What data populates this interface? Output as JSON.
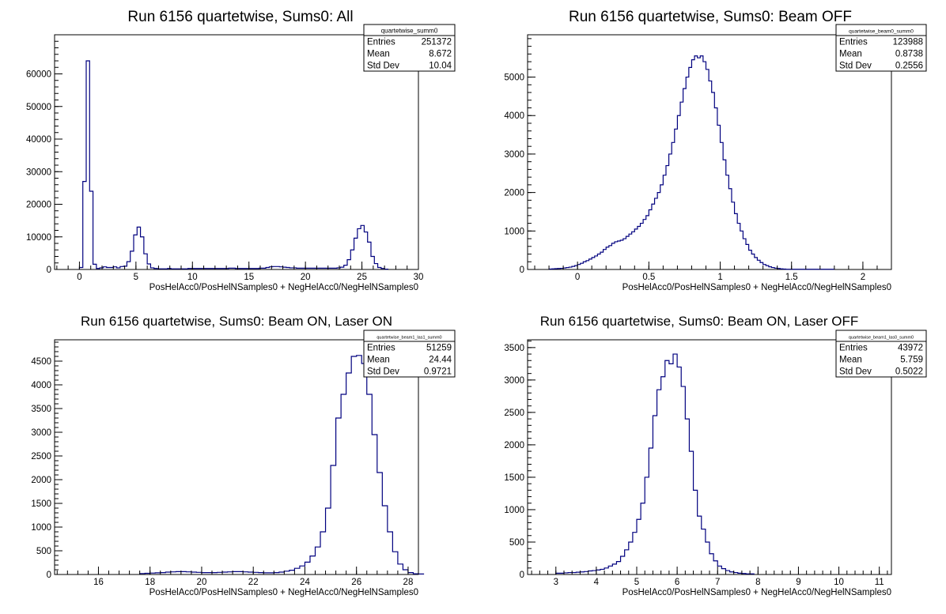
{
  "chart_data": [
    {
      "type": "histogram",
      "title": "Run 6156 quartetwise, Sums0: All",
      "xlabel": "PosHelAcc0/PosHelNSamples0 + NegHelAcc0/NegHelNSamples0",
      "ylabel": "",
      "xlim": [
        -2.2,
        30
      ],
      "ylim": [
        0,
        72000
      ],
      "xticks": [
        0,
        5,
        10,
        15,
        20,
        25,
        30
      ],
      "yticks": [
        0,
        10000,
        20000,
        30000,
        40000,
        50000,
        60000
      ],
      "stats": {
        "name": "quartetwise_summ0",
        "entries_label": "Entries",
        "entries": "251372",
        "mean_label": "Mean",
        "mean": "8.672",
        "std_label": "Std Dev",
        "std": "10.04"
      },
      "x_start": 0,
      "bin_width": 0.3,
      "values": [
        600,
        27000,
        64000,
        24000,
        1600,
        300,
        500,
        800,
        600,
        600,
        800,
        500,
        900,
        1000,
        2400,
        5600,
        10600,
        13000,
        10000,
        4800,
        1700,
        500,
        300,
        200,
        200,
        200,
        300,
        200,
        200,
        200,
        200,
        200,
        300,
        300,
        300,
        300,
        300,
        300,
        300,
        300,
        300,
        300,
        300,
        300,
        400,
        400,
        300,
        300,
        300,
        300,
        300,
        300,
        300,
        400,
        400,
        600,
        800,
        900,
        900,
        800,
        700,
        600,
        500,
        500,
        400,
        400,
        400,
        400,
        400,
        400,
        400,
        400,
        400,
        400,
        400,
        400,
        500,
        700,
        1300,
        3000,
        6000,
        9600,
        12500,
        13500,
        11500,
        8400,
        4000,
        1800,
        600,
        300,
        100
      ]
    },
    {
      "type": "histogram",
      "title": "Run 6156 quartetwise, Sums0: Beam OFF",
      "xlabel": "PosHelAcc0/PosHelNSamples0 + NegHelAcc0/NegHelNSamples0",
      "ylabel": "",
      "xlim": [
        -0.35,
        2.2
      ],
      "ylim": [
        0,
        6100
      ],
      "xticks": [
        0,
        0.5,
        1,
        1.5,
        2
      ],
      "xtick_labels": [
        "0",
        "0.5",
        "1",
        "1.5",
        "2"
      ],
      "yticks": [
        0,
        1000,
        2000,
        3000,
        4000,
        5000
      ],
      "stats": {
        "name": "quartetwise_beam0_summ0",
        "entries_label": "Entries",
        "entries": "123988",
        "mean_label": "Mean",
        "mean": "0.8738",
        "std_label": "Std Dev",
        "std": "0.2556"
      },
      "x_start": -0.2,
      "bin_width": 0.02,
      "values": [
        10,
        15,
        20,
        25,
        30,
        40,
        50,
        60,
        80,
        100,
        130,
        160,
        200,
        230,
        270,
        310,
        350,
        400,
        450,
        520,
        580,
        620,
        680,
        720,
        740,
        760,
        800,
        860,
        920,
        980,
        1050,
        1120,
        1200,
        1300,
        1400,
        1550,
        1700,
        1850,
        2000,
        2200,
        2450,
        2700,
        3000,
        3300,
        3650,
        4000,
        4350,
        4700,
        5000,
        5250,
        5450,
        5550,
        5500,
        5550,
        5400,
        5200,
        4900,
        4600,
        4200,
        3750,
        3300,
        2850,
        2450,
        2100,
        1750,
        1450,
        1200,
        1000,
        800,
        650,
        500,
        400,
        310,
        240,
        180,
        130,
        100,
        70,
        50,
        35,
        25,
        15,
        10,
        5,
        5,
        5,
        5,
        5,
        5,
        5,
        5,
        5,
        5,
        5,
        5,
        5,
        5,
        5,
        5,
        5
      ]
    },
    {
      "type": "histogram",
      "title": "Run 6156 quartetwise, Sums0: Beam ON, Laser ON",
      "xlabel": "PosHelAcc0/PosHelNSamples0 + NegHelAcc0/NegHelNSamples0",
      "ylabel": "",
      "xlim": [
        14.3,
        28.4
      ],
      "ylim": [
        0,
        4950
      ],
      "xticks": [
        16,
        18,
        20,
        22,
        24,
        26,
        28
      ],
      "yticks": [
        0,
        500,
        1000,
        1500,
        2000,
        2500,
        3000,
        3500,
        4000,
        4500
      ],
      "stats": {
        "name": "quartetwise_beam1_las1_summ0",
        "entries_label": "Entries",
        "entries": "51259",
        "mean_label": "Mean",
        "mean": "24.44",
        "std_label": "Std Dev",
        "std": "0.9721"
      },
      "x_start": 17.6,
      "bin_width": 0.2,
      "values": [
        20,
        25,
        30,
        35,
        40,
        50,
        55,
        60,
        60,
        55,
        50,
        45,
        40,
        40,
        40,
        45,
        50,
        55,
        60,
        60,
        55,
        50,
        45,
        40,
        35,
        35,
        40,
        50,
        70,
        90,
        130,
        180,
        260,
        390,
        580,
        900,
        1400,
        2300,
        3300,
        3800,
        4250,
        4600,
        4620,
        4450,
        3800,
        2950,
        2150,
        1450,
        900,
        480,
        220,
        100,
        40,
        15,
        10
      ]
    },
    {
      "type": "histogram",
      "title": "Run 6156 quartetwise, Sums0: Beam ON, Laser OFF",
      "xlabel": "PosHelAcc0/PosHelNSamples0 + NegHelAcc0/NegHelNSamples0",
      "ylabel": "",
      "xlim": [
        2.3,
        11.3
      ],
      "ylim": [
        0,
        3620
      ],
      "xticks": [
        3,
        4,
        5,
        6,
        7,
        8,
        9,
        10,
        11
      ],
      "yticks": [
        0,
        500,
        1000,
        1500,
        2000,
        2500,
        3000,
        3500
      ],
      "stats": {
        "name": "quartetwise_beam1_las0_summ0",
        "entries_label": "Entries",
        "entries": "43972",
        "mean_label": "Mean",
        "mean": "5.759",
        "std_label": "Std Dev",
        "std": "0.5022"
      },
      "x_start": 3.0,
      "bin_width": 0.1,
      "values": [
        20,
        20,
        25,
        30,
        30,
        35,
        40,
        45,
        55,
        60,
        70,
        80,
        100,
        130,
        160,
        200,
        280,
        380,
        500,
        650,
        850,
        1100,
        1500,
        1950,
        2450,
        2850,
        3050,
        3300,
        3250,
        3400,
        3200,
        2900,
        2400,
        1900,
        1300,
        900,
        700,
        500,
        320,
        210,
        130,
        90,
        60,
        40,
        30,
        20,
        15,
        10,
        10
      ]
    }
  ]
}
